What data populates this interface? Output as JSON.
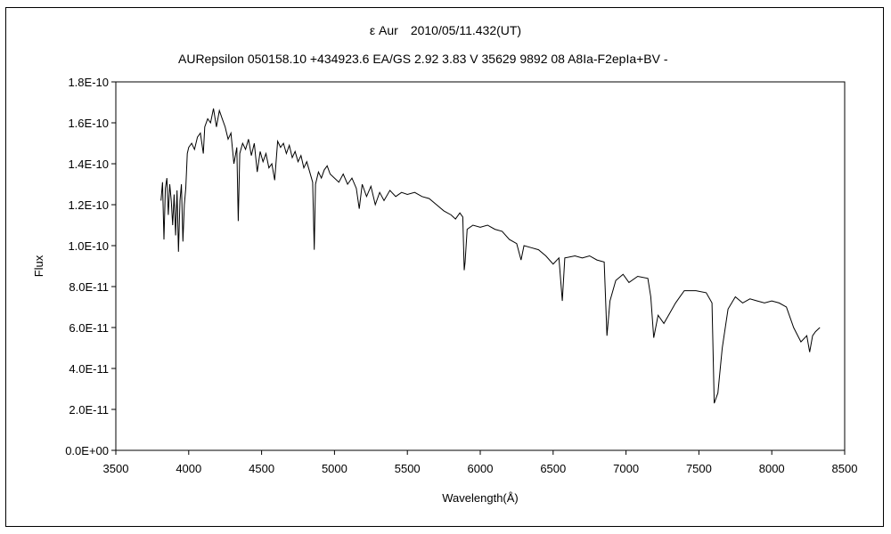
{
  "chart_data": {
    "type": "line",
    "title": "ε Aur　2010/05/11.432(UT)",
    "subtitle": "AURepsilon 050158.10 +434923.6 EA/GS 2.92 3.83 V 35629 9892 08 A8Ia-F2epIa+BV -",
    "xlabel": "Wavelength(Å)",
    "ylabel": "Flux",
    "xlim": [
      3500,
      8500
    ],
    "ylim": [
      0,
      1.8e-10
    ],
    "x_ticks": [
      3500,
      4000,
      4500,
      5000,
      5500,
      6000,
      6500,
      7000,
      7500,
      8000,
      8500
    ],
    "x_tick_labels": [
      "3500",
      "4000",
      "4500",
      "5000",
      "5500",
      "6000",
      "6500",
      "7000",
      "7500",
      "8000",
      "8500"
    ],
    "y_ticks": [
      0,
      2e-11,
      4e-11,
      6e-11,
      8e-11,
      1e-10,
      1.2e-10,
      1.4e-10,
      1.6e-10,
      1.8e-10
    ],
    "y_tick_labels": [
      "0.0E+00",
      "2.0E-11",
      "4.0E-11",
      "6.0E-11",
      "8.0E-11",
      "1.0E-10",
      "1.2E-10",
      "1.4E-10",
      "1.6E-10",
      "1.8E-10"
    ],
    "grid": false,
    "legend": "none",
    "series": [
      {
        "color": "#000000",
        "points": [
          [
            3810,
            1.22e-10
          ],
          [
            3820,
            1.31e-10
          ],
          [
            3830,
            1.03e-10
          ],
          [
            3840,
            1.28e-10
          ],
          [
            3850,
            1.33e-10
          ],
          [
            3860,
            1.15e-10
          ],
          [
            3870,
            1.3e-10
          ],
          [
            3880,
            1.22e-10
          ],
          [
            3890,
            1.1e-10
          ],
          [
            3900,
            1.25e-10
          ],
          [
            3910,
            1.05e-10
          ],
          [
            3920,
            1.27e-10
          ],
          [
            3930,
            9.7e-11
          ],
          [
            3940,
            1.22e-10
          ],
          [
            3950,
            1.3e-10
          ],
          [
            3960,
            1.02e-10
          ],
          [
            3970,
            1.2e-10
          ],
          [
            3980,
            1.28e-10
          ],
          [
            3990,
            1.45e-10
          ],
          [
            4000,
            1.48e-10
          ],
          [
            4020,
            1.5e-10
          ],
          [
            4040,
            1.47e-10
          ],
          [
            4060,
            1.53e-10
          ],
          [
            4080,
            1.55e-10
          ],
          [
            4100,
            1.45e-10
          ],
          [
            4110,
            1.58e-10
          ],
          [
            4130,
            1.62e-10
          ],
          [
            4150,
            1.6e-10
          ],
          [
            4170,
            1.67e-10
          ],
          [
            4190,
            1.58e-10
          ],
          [
            4210,
            1.66e-10
          ],
          [
            4230,
            1.62e-10
          ],
          [
            4250,
            1.58e-10
          ],
          [
            4270,
            1.52e-10
          ],
          [
            4290,
            1.55e-10
          ],
          [
            4310,
            1.4e-10
          ],
          [
            4330,
            1.48e-10
          ],
          [
            4340,
            1.12e-10
          ],
          [
            4350,
            1.45e-10
          ],
          [
            4370,
            1.5e-10
          ],
          [
            4390,
            1.47e-10
          ],
          [
            4410,
            1.52e-10
          ],
          [
            4430,
            1.44e-10
          ],
          [
            4450,
            1.5e-10
          ],
          [
            4470,
            1.36e-10
          ],
          [
            4490,
            1.46e-10
          ],
          [
            4510,
            1.41e-10
          ],
          [
            4530,
            1.45e-10
          ],
          [
            4550,
            1.38e-10
          ],
          [
            4570,
            1.4e-10
          ],
          [
            4590,
            1.32e-10
          ],
          [
            4610,
            1.51e-10
          ],
          [
            4630,
            1.48e-10
          ],
          [
            4650,
            1.5e-10
          ],
          [
            4670,
            1.45e-10
          ],
          [
            4690,
            1.49e-10
          ],
          [
            4710,
            1.43e-10
          ],
          [
            4730,
            1.46e-10
          ],
          [
            4750,
            1.41e-10
          ],
          [
            4770,
            1.44e-10
          ],
          [
            4790,
            1.38e-10
          ],
          [
            4810,
            1.41e-10
          ],
          [
            4830,
            1.36e-10
          ],
          [
            4850,
            1.31e-10
          ],
          [
            4861,
            9.8e-11
          ],
          [
            4870,
            1.3e-10
          ],
          [
            4890,
            1.36e-10
          ],
          [
            4910,
            1.33e-10
          ],
          [
            4930,
            1.37e-10
          ],
          [
            4950,
            1.39e-10
          ],
          [
            4970,
            1.35e-10
          ],
          [
            5000,
            1.33e-10
          ],
          [
            5030,
            1.31e-10
          ],
          [
            5060,
            1.35e-10
          ],
          [
            5090,
            1.3e-10
          ],
          [
            5120,
            1.33e-10
          ],
          [
            5150,
            1.28e-10
          ],
          [
            5170,
            1.18e-10
          ],
          [
            5190,
            1.3e-10
          ],
          [
            5220,
            1.24e-10
          ],
          [
            5250,
            1.29e-10
          ],
          [
            5280,
            1.2e-10
          ],
          [
            5310,
            1.26e-10
          ],
          [
            5340,
            1.22e-10
          ],
          [
            5380,
            1.27e-10
          ],
          [
            5420,
            1.24e-10
          ],
          [
            5460,
            1.26e-10
          ],
          [
            5500,
            1.25e-10
          ],
          [
            5550,
            1.26e-10
          ],
          [
            5600,
            1.24e-10
          ],
          [
            5650,
            1.23e-10
          ],
          [
            5700,
            1.2e-10
          ],
          [
            5750,
            1.17e-10
          ],
          [
            5800,
            1.15e-10
          ],
          [
            5830,
            1.13e-10
          ],
          [
            5860,
            1.16e-10
          ],
          [
            5880,
            1.14e-10
          ],
          [
            5890,
            8.8e-11
          ],
          [
            5896,
            9.2e-11
          ],
          [
            5910,
            1.08e-10
          ],
          [
            5950,
            1.1e-10
          ],
          [
            6000,
            1.09e-10
          ],
          [
            6050,
            1.1e-10
          ],
          [
            6100,
            1.08e-10
          ],
          [
            6150,
            1.07e-10
          ],
          [
            6200,
            1.03e-10
          ],
          [
            6250,
            1.01e-10
          ],
          [
            6280,
            9.3e-11
          ],
          [
            6300,
            1e-10
          ],
          [
            6350,
            9.9e-11
          ],
          [
            6400,
            9.8e-11
          ],
          [
            6450,
            9.5e-11
          ],
          [
            6500,
            9.1e-11
          ],
          [
            6540,
            9.4e-11
          ],
          [
            6563,
            7.3e-11
          ],
          [
            6580,
            9.4e-11
          ],
          [
            6650,
            9.5e-11
          ],
          [
            6700,
            9.4e-11
          ],
          [
            6750,
            9.5e-11
          ],
          [
            6800,
            9.3e-11
          ],
          [
            6850,
            9.2e-11
          ],
          [
            6869,
            5.6e-11
          ],
          [
            6890,
            7.3e-11
          ],
          [
            6930,
            8.3e-11
          ],
          [
            6980,
            8.6e-11
          ],
          [
            7020,
            8.2e-11
          ],
          [
            7080,
            8.5e-11
          ],
          [
            7150,
            8.4e-11
          ],
          [
            7170,
            7.5e-11
          ],
          [
            7190,
            5.5e-11
          ],
          [
            7220,
            6.6e-11
          ],
          [
            7260,
            6.2e-11
          ],
          [
            7300,
            6.7e-11
          ],
          [
            7340,
            7.2e-11
          ],
          [
            7400,
            7.8e-11
          ],
          [
            7480,
            7.8e-11
          ],
          [
            7550,
            7.7e-11
          ],
          [
            7590,
            7.2e-11
          ],
          [
            7605,
            2.3e-11
          ],
          [
            7630,
            2.8e-11
          ],
          [
            7660,
            5e-11
          ],
          [
            7700,
            6.9e-11
          ],
          [
            7750,
            7.5e-11
          ],
          [
            7800,
            7.2e-11
          ],
          [
            7850,
            7.4e-11
          ],
          [
            7900,
            7.3e-11
          ],
          [
            7950,
            7.2e-11
          ],
          [
            8000,
            7.3e-11
          ],
          [
            8050,
            7.2e-11
          ],
          [
            8100,
            7e-11
          ],
          [
            8150,
            6e-11
          ],
          [
            8200,
            5.3e-11
          ],
          [
            8240,
            5.6e-11
          ],
          [
            8260,
            4.8e-11
          ],
          [
            8280,
            5.6e-11
          ],
          [
            8300,
            5.8e-11
          ],
          [
            8330,
            6e-11
          ]
        ]
      }
    ]
  }
}
